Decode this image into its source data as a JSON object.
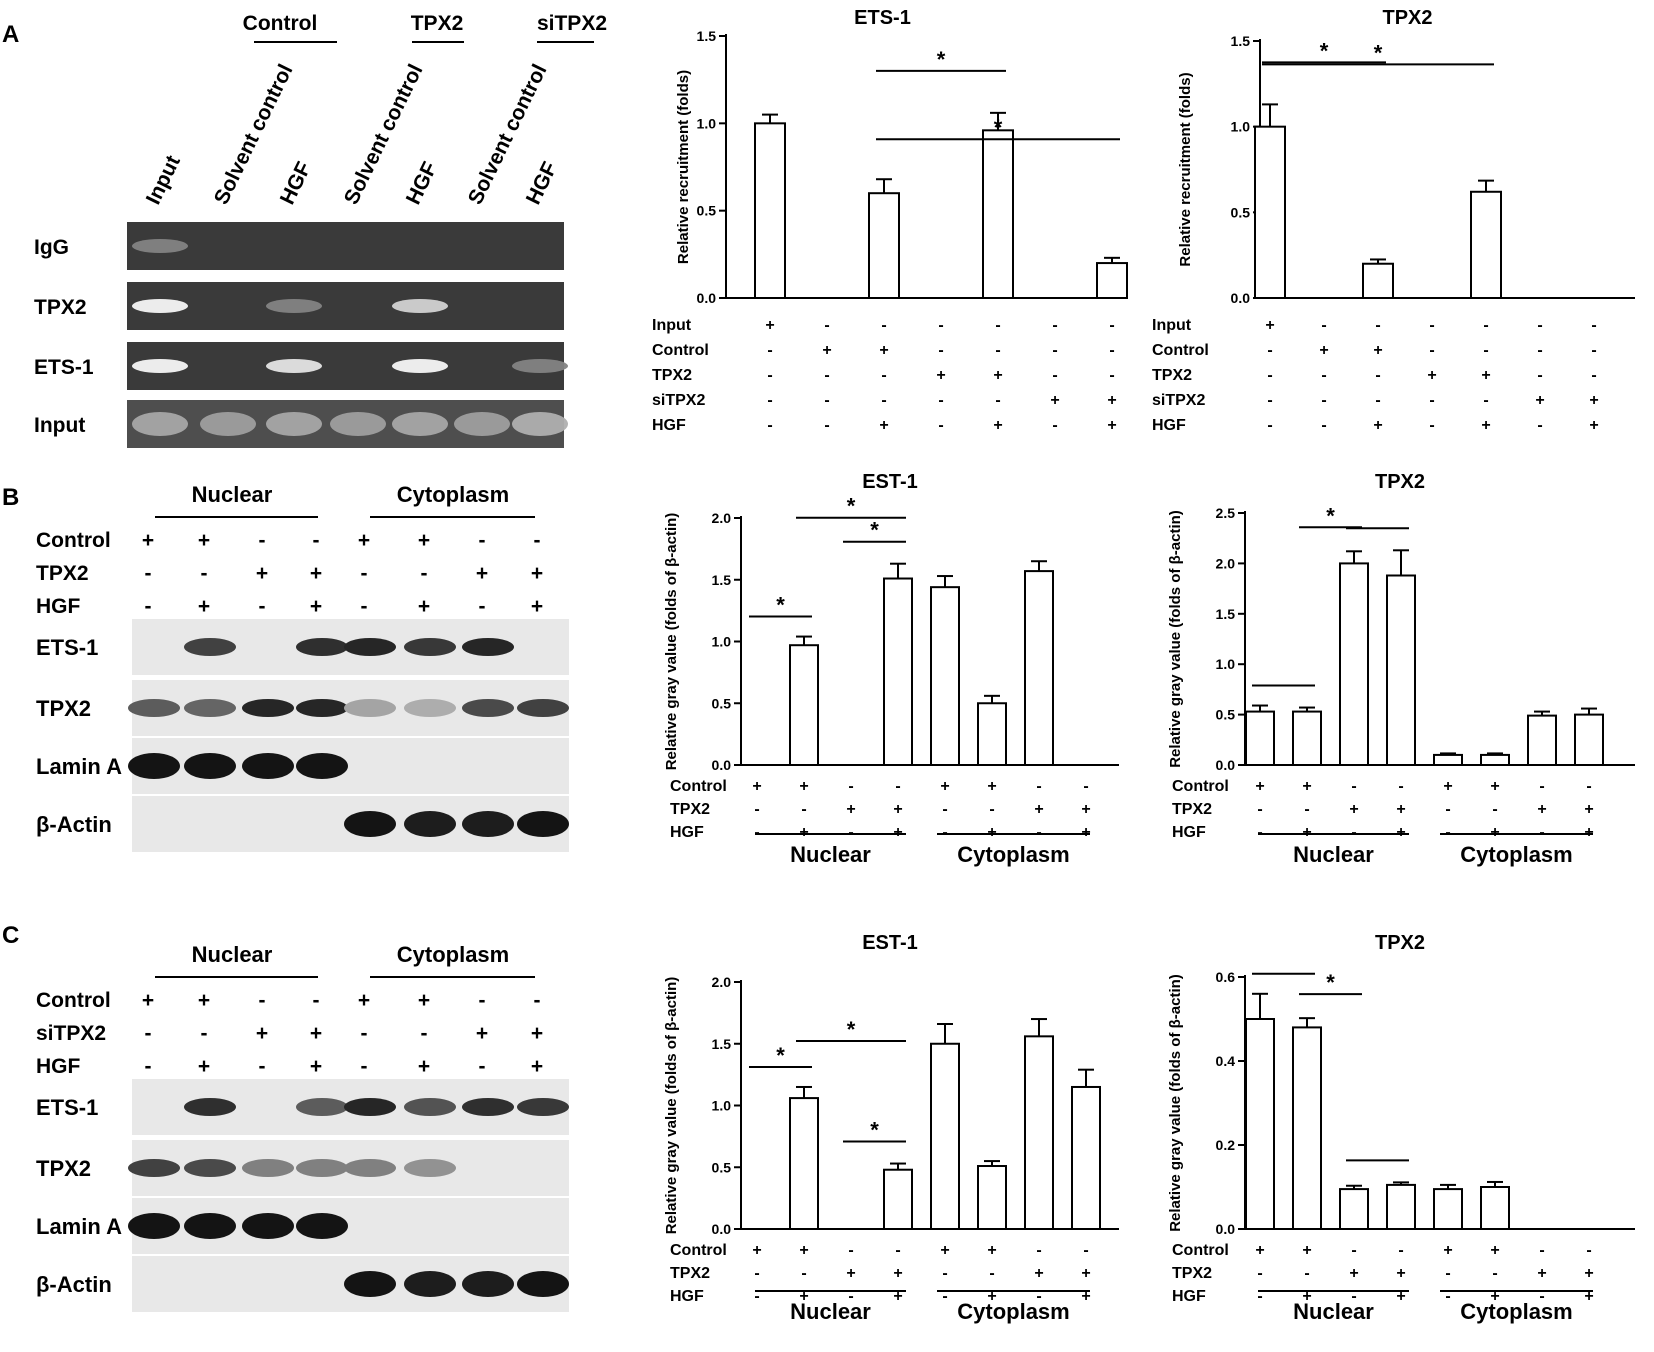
{
  "panel_letters": [
    "A",
    "B",
    "C"
  ],
  "panelA_blot": {
    "group_headers": [
      "Control",
      "TPX2",
      "siTPX2"
    ],
    "lane_labels": [
      "Input",
      "Solvent control",
      "HGF",
      "Solvent control",
      "HGF",
      "Solvent control",
      "HGF"
    ],
    "row_labels": [
      "IgG",
      "TPX2",
      "ETS-1",
      "Input"
    ],
    "band_intensity": [
      [
        0.35,
        0,
        0,
        0,
        0,
        0,
        0
      ],
      [
        1,
        0,
        0.35,
        0,
        0.8,
        0,
        0
      ],
      [
        1,
        0,
        0.9,
        0,
        1,
        0,
        0.35
      ],
      [
        0.55,
        0.5,
        0.55,
        0.5,
        0.55,
        0.5,
        0.6
      ]
    ]
  },
  "blotB": {
    "section_headers": [
      "Nuclear",
      "Cytoplasm"
    ],
    "cond_rows": [
      {
        "label": "Control",
        "marks": [
          "+",
          "+",
          "-",
          "-",
          "+",
          "+",
          "-",
          "-"
        ]
      },
      {
        "label": "TPX2",
        "marks": [
          "-",
          "-",
          "+",
          "+",
          "-",
          "-",
          "+",
          "+"
        ]
      },
      {
        "label": "HGF",
        "marks": [
          "-",
          "+",
          "-",
          "+",
          "-",
          "+",
          "-",
          "+"
        ]
      }
    ],
    "row_labels": [
      "ETS-1",
      "TPX2",
      "Lamin A",
      "β-Actin"
    ],
    "band_intensity": [
      [
        0,
        0.75,
        0,
        0.85,
        0.9,
        0.8,
        0.9,
        0
      ],
      [
        0.6,
        0.55,
        0.9,
        0.9,
        0.2,
        0.15,
        0.7,
        0.75
      ],
      [
        1,
        1,
        1,
        1,
        0,
        0,
        0,
        0
      ],
      [
        0,
        0,
        0,
        0,
        1,
        0.95,
        0.95,
        1
      ]
    ]
  },
  "blotC": {
    "section_headers": [
      "Nuclear",
      "Cytoplasm"
    ],
    "cond_rows": [
      {
        "label": "Control",
        "marks": [
          "+",
          "+",
          "-",
          "-",
          "+",
          "+",
          "-",
          "-"
        ]
      },
      {
        "label": "siTPX2",
        "marks": [
          "-",
          "-",
          "+",
          "+",
          "-",
          "-",
          "+",
          "+"
        ]
      },
      {
        "label": "HGF",
        "marks": [
          "-",
          "+",
          "-",
          "+",
          "-",
          "+",
          "-",
          "+"
        ]
      }
    ],
    "row_labels": [
      "ETS-1",
      "TPX2",
      "Lamin A",
      "β-Actin"
    ],
    "band_intensity": [
      [
        0,
        0.85,
        0,
        0.6,
        0.9,
        0.65,
        0.85,
        0.8
      ],
      [
        0.75,
        0.7,
        0.4,
        0.4,
        0.4,
        0.3,
        0,
        0
      ],
      [
        1,
        1,
        1,
        1,
        0,
        0,
        0,
        0
      ],
      [
        0,
        0,
        0,
        0,
        1,
        0.95,
        0.95,
        1
      ]
    ]
  },
  "chart_data": [
    {
      "type": "bar",
      "title": "ETS-1",
      "ylabel": "Relative recruitment (folds)",
      "ylim": [
        0,
        1.5
      ],
      "yticks": [
        "0.0",
        "0.5",
        "1.0",
        "1.5"
      ],
      "values": [
        1.0,
        null,
        0.6,
        null,
        0.96,
        null,
        0.2
      ],
      "errors": [
        0.05,
        null,
        0.08,
        null,
        0.1,
        null,
        0.03
      ],
      "condition_rows": [
        {
          "label": "Input",
          "marks": [
            "+",
            "-",
            "-",
            "-",
            "-",
            "-",
            "-"
          ]
        },
        {
          "label": "Control",
          "marks": [
            "-",
            "+",
            "+",
            "-",
            "-",
            "-",
            "-"
          ]
        },
        {
          "label": "TPX2",
          "marks": [
            "-",
            "-",
            "-",
            "+",
            "+",
            "-",
            "-"
          ]
        },
        {
          "label": "siTPX2",
          "marks": [
            "-",
            "-",
            "-",
            "-",
            "-",
            "+",
            "+"
          ]
        },
        {
          "label": "HGF",
          "marks": [
            "-",
            "-",
            "+",
            "-",
            "+",
            "-",
            "+"
          ]
        }
      ],
      "significance": [
        {
          "from": 2,
          "to": 4,
          "label": "*"
        },
        {
          "from": 2,
          "to": 6,
          "label": "*"
        }
      ],
      "group_labels": []
    },
    {
      "type": "bar",
      "title": "TPX2",
      "ylabel": "Relative recruitment (folds)",
      "ylim": [
        0,
        1.5
      ],
      "yticks": [
        "0.0",
        "0.5",
        "1.0",
        "1.5"
      ],
      "values": [
        1.0,
        null,
        0.2,
        null,
        0.62,
        null,
        null
      ],
      "errors": [
        0.13,
        null,
        0.025,
        null,
        0.065,
        null,
        null
      ],
      "condition_rows": [
        {
          "label": "Input",
          "marks": [
            "+",
            "-",
            "-",
            "-",
            "-",
            "-",
            "-"
          ]
        },
        {
          "label": "Control",
          "marks": [
            "-",
            "+",
            "+",
            "-",
            "-",
            "-",
            "-"
          ]
        },
        {
          "label": "TPX2",
          "marks": [
            "-",
            "-",
            "-",
            "+",
            "+",
            "-",
            "-"
          ]
        },
        {
          "label": "siTPX2",
          "marks": [
            "-",
            "-",
            "-",
            "-",
            "-",
            "+",
            "+"
          ]
        },
        {
          "label": "HGF",
          "marks": [
            "-",
            "-",
            "+",
            "-",
            "+",
            "-",
            "+"
          ]
        }
      ],
      "significance": [
        {
          "from": 0,
          "to": 2,
          "label": "*"
        },
        {
          "from": 0,
          "to": 4,
          "label": "*"
        }
      ],
      "group_labels": []
    },
    {
      "type": "bar",
      "title": "EST-1",
      "ylabel": "Relative gray value (folds of β-actin)",
      "ylim": [
        0,
        2.0
      ],
      "yticks": [
        "0.0",
        "0.5",
        "1.0",
        "1.5",
        "2.0"
      ],
      "values": [
        null,
        0.97,
        null,
        1.51,
        1.44,
        0.5,
        1.57,
        null
      ],
      "errors": [
        null,
        0.07,
        null,
        0.12,
        0.09,
        0.06,
        0.08,
        null
      ],
      "condition_rows": [
        {
          "label": "Control",
          "marks": [
            "+",
            "+",
            "-",
            "-",
            "+",
            "+",
            "-",
            "-"
          ]
        },
        {
          "label": "TPX2",
          "marks": [
            "-",
            "-",
            "+",
            "+",
            "-",
            "-",
            "+",
            "+"
          ]
        },
        {
          "label": "HGF",
          "marks": [
            "-",
            "+",
            "-",
            "+",
            "-",
            "+",
            "-",
            "+"
          ]
        }
      ],
      "significance": [
        {
          "from": 0,
          "to": 1,
          "label": "*"
        },
        {
          "from": 2,
          "to": 3,
          "label": "*"
        },
        {
          "from": 1,
          "to": 3,
          "label": "*"
        }
      ],
      "group_labels": [
        "Nuclear",
        "Cytoplasm"
      ]
    },
    {
      "type": "bar",
      "title": "TPX2",
      "ylabel": "Relative gray value (folds of β-actin)",
      "ylim": [
        0,
        2.5
      ],
      "yticks": [
        "0.0",
        "0.5",
        "1.0",
        "1.5",
        "2.0",
        "2.5"
      ],
      "values": [
        0.53,
        0.53,
        2.0,
        1.88,
        0.1,
        0.1,
        0.49,
        0.5
      ],
      "errors": [
        0.06,
        0.04,
        0.12,
        0.25,
        0.015,
        0.015,
        0.04,
        0.06
      ],
      "condition_rows": [
        {
          "label": "Control",
          "marks": [
            "+",
            "+",
            "-",
            "-",
            "+",
            "+",
            "-",
            "-"
          ]
        },
        {
          "label": "TPX2",
          "marks": [
            "-",
            "-",
            "+",
            "+",
            "-",
            "-",
            "+",
            "+"
          ]
        },
        {
          "label": "HGF",
          "marks": [
            "-",
            "+",
            "-",
            "+",
            "-",
            "+",
            "-",
            "+"
          ]
        }
      ],
      "significance": [
        {
          "from": 0,
          "to": 1,
          "label": ""
        },
        {
          "from": 2,
          "to": 3,
          "label": ""
        },
        {
          "from": 1,
          "to": 2,
          "label": "*"
        }
      ],
      "group_labels": [
        "Nuclear",
        "Cytoplasm"
      ]
    },
    {
      "type": "bar",
      "title": "EST-1",
      "ylabel": "Relative gray value (folds of β-actin)",
      "ylim": [
        0,
        2.0
      ],
      "yticks": [
        "0.0",
        "0.5",
        "1.0",
        "1.5",
        "2.0"
      ],
      "values": [
        null,
        1.06,
        null,
        0.48,
        1.5,
        0.51,
        1.56,
        1.15
      ],
      "errors": [
        null,
        0.09,
        null,
        0.05,
        0.16,
        0.04,
        0.14,
        0.14
      ],
      "condition_rows": [
        {
          "label": "Control",
          "marks": [
            "+",
            "+",
            "-",
            "-",
            "+",
            "+",
            "-",
            "-"
          ]
        },
        {
          "label": "TPX2",
          "marks": [
            "-",
            "-",
            "+",
            "+",
            "-",
            "-",
            "+",
            "+"
          ]
        },
        {
          "label": "HGF",
          "marks": [
            "-",
            "+",
            "-",
            "+",
            "-",
            "+",
            "-",
            "+"
          ]
        }
      ],
      "significance": [
        {
          "from": 0,
          "to": 1,
          "label": "*"
        },
        {
          "from": 2,
          "to": 3,
          "label": "*"
        },
        {
          "from": 1,
          "to": 3,
          "label": "*"
        }
      ],
      "group_labels": [
        "Nuclear",
        "Cytoplasm"
      ]
    },
    {
      "type": "bar",
      "title": "TPX2",
      "ylabel": "Relative gray value (folds of β-actin)",
      "ylim": [
        0,
        0.6
      ],
      "yticks": [
        "0.0",
        "0.2",
        "0.4",
        "0.6"
      ],
      "values": [
        0.5,
        0.48,
        0.095,
        0.105,
        0.095,
        0.1,
        null,
        null
      ],
      "errors": [
        0.06,
        0.022,
        0.008,
        0.006,
        0.01,
        0.012,
        null,
        null
      ],
      "condition_rows": [
        {
          "label": "Control",
          "marks": [
            "+",
            "+",
            "-",
            "-",
            "+",
            "+",
            "-",
            "-"
          ]
        },
        {
          "label": "TPX2",
          "marks": [
            "-",
            "-",
            "+",
            "+",
            "-",
            "-",
            "+",
            "+"
          ]
        },
        {
          "label": "HGF",
          "marks": [
            "-",
            "+",
            "-",
            "+",
            "-",
            "+",
            "-",
            "+"
          ]
        }
      ],
      "significance": [
        {
          "from": 0,
          "to": 1,
          "label": ""
        },
        {
          "from": 2,
          "to": 3,
          "label": ""
        },
        {
          "from": 1,
          "to": 2,
          "label": "*"
        }
      ],
      "group_labels": [
        "Nuclear",
        "Cytoplasm"
      ]
    }
  ]
}
